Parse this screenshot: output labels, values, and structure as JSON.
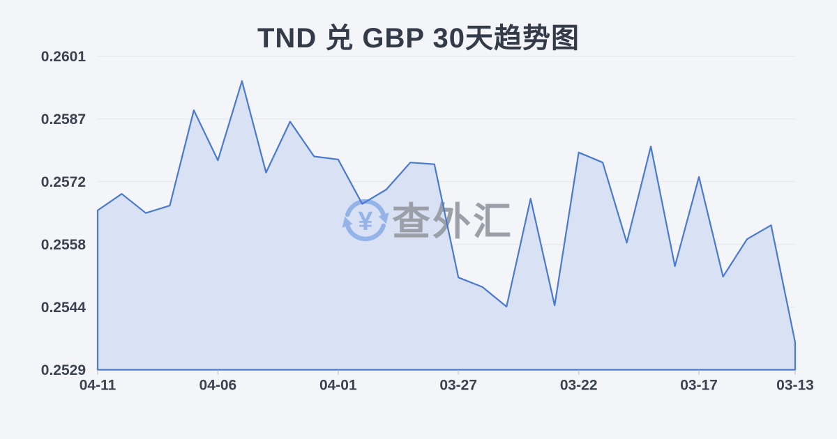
{
  "title": "TND 兑 GBP 30天趋势图",
  "watermark": {
    "text": "查外汇",
    "icon": "currency-exchange-icon"
  },
  "colors": {
    "background": "#f4f5f8",
    "title_text": "#333a48",
    "axis_text": "#3c4350",
    "grid_line": "#e4e6ea",
    "tick_mark": "#c9ccd3",
    "trend_line": "#4a79d0",
    "area_fill": "#d9e1f5",
    "watermark_text": "#9b9fa7",
    "watermark_icon": "#94b4e9"
  },
  "chart_data": {
    "type": "area",
    "title": "TND 兑 GBP 30天趋势图",
    "xlabel": "",
    "ylabel": "",
    "x": [
      "04-11",
      "04-10",
      "04-09",
      "04-08",
      "04-07",
      "04-06",
      "04-05",
      "04-04",
      "04-03",
      "04-02",
      "04-01",
      "03-31",
      "03-30",
      "03-29",
      "03-28",
      "03-27",
      "03-26",
      "03-25",
      "03-24",
      "03-23",
      "03-22",
      "03-21",
      "03-20",
      "03-19",
      "03-18",
      "03-17",
      "03-16",
      "03-15",
      "03-14",
      "03-13"
    ],
    "values": [
      0.25656,
      0.25694,
      0.2565,
      0.25667,
      0.25886,
      0.25771,
      0.25953,
      0.25743,
      0.2586,
      0.2578,
      0.25773,
      0.25671,
      0.25704,
      0.25766,
      0.25762,
      0.25502,
      0.2548,
      0.25435,
      0.25683,
      0.25438,
      0.25789,
      0.25766,
      0.25582,
      0.25803,
      0.25528,
      0.25733,
      0.25504,
      0.2559,
      0.25622,
      0.25353
    ],
    "ylim": [
      0.2529,
      0.2601
    ],
    "ytick_labels": [
      "0.2601",
      "0.2587",
      "0.2572",
      "0.2558",
      "0.2544",
      "0.2529"
    ],
    "xtick_labels": [
      "04-11",
      "04-06",
      "04-01",
      "03-27",
      "03-22",
      "03-17",
      "03-13"
    ],
    "grid": "horizontal",
    "legend": "none",
    "note_x_axis_direction": "dates run newest (left) to oldest (right)"
  }
}
